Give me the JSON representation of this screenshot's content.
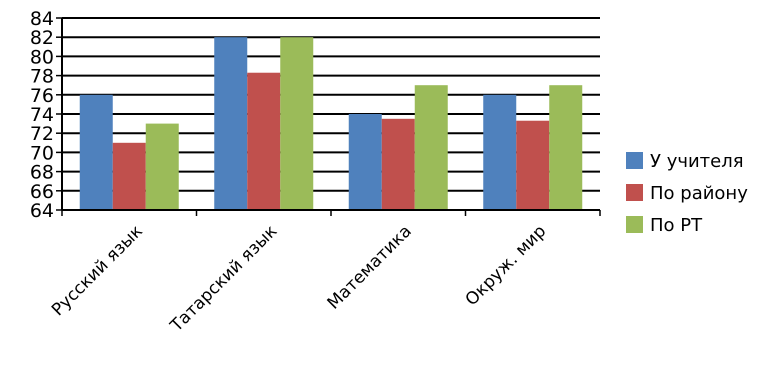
{
  "chart_data": {
    "type": "bar",
    "categories": [
      "Русский язык",
      "Татарский язык",
      "Математика",
      "Окруж. мир"
    ],
    "series": [
      {
        "name": "У учителя",
        "values": [
          76,
          82,
          74,
          76
        ],
        "color": "#4f81bd"
      },
      {
        "name": "По району",
        "values": [
          71,
          78.3,
          73.5,
          73.3
        ],
        "color": "#c0504d"
      },
      {
        "name": "По РТ",
        "values": [
          73,
          82,
          77,
          77
        ],
        "color": "#9bbb59"
      }
    ],
    "ylim": [
      64,
      84
    ],
    "y_ticks": [
      "64",
      "66",
      "68",
      "70",
      "72",
      "74",
      "76",
      "78",
      "80",
      "82",
      "84"
    ],
    "grid": true,
    "legend_position": "right"
  }
}
